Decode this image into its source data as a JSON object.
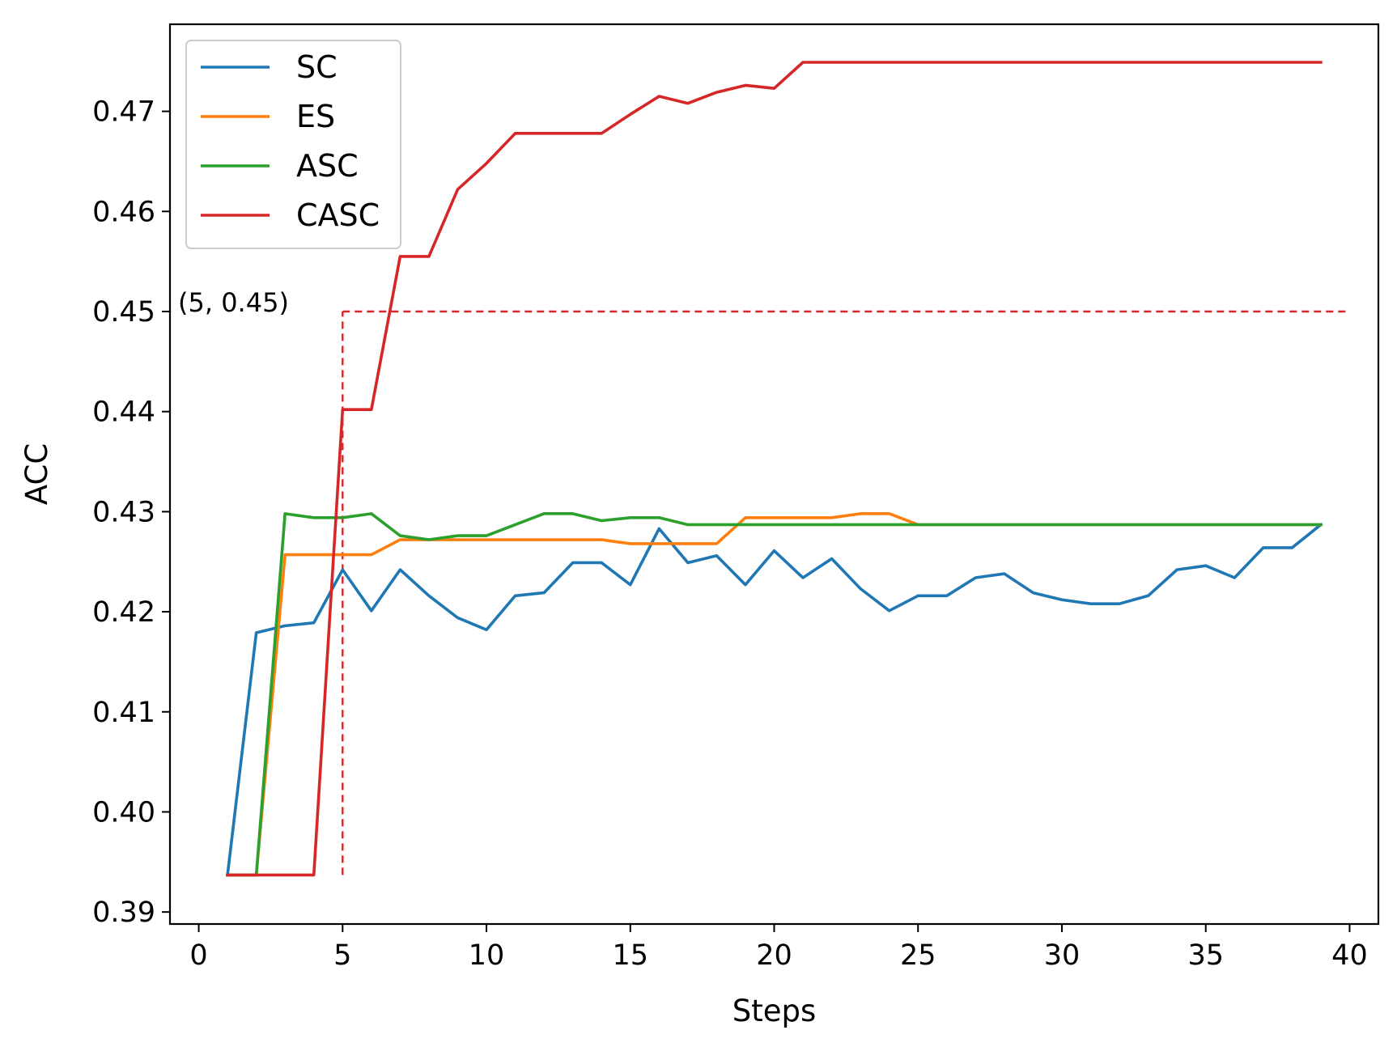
{
  "chart_data": {
    "type": "line",
    "title": "",
    "xlabel": "Steps",
    "ylabel": "ACC",
    "xlim": [
      -1,
      41
    ],
    "ylim": [
      0.3888,
      0.4787
    ],
    "xticks": [
      0,
      5,
      10,
      15,
      20,
      25,
      30,
      35,
      40
    ],
    "yticks": [
      0.39,
      0.4,
      0.41,
      0.42,
      0.43,
      0.44,
      0.45,
      0.46,
      0.47
    ],
    "xtick_labels": [
      "0",
      "5",
      "10",
      "15",
      "20",
      "25",
      "30",
      "35",
      "40"
    ],
    "ytick_labels": [
      "0.39",
      "0.40",
      "0.41",
      "0.42",
      "0.43",
      "0.44",
      "0.45",
      "0.46",
      "0.47"
    ],
    "grid": false,
    "legend_position": "top-left",
    "x": [
      1,
      2,
      3,
      4,
      5,
      6,
      7,
      8,
      9,
      10,
      11,
      12,
      13,
      14,
      15,
      16,
      17,
      18,
      19,
      20,
      21,
      22,
      23,
      24,
      25,
      26,
      27,
      28,
      29,
      30,
      31,
      32,
      33,
      34,
      35,
      36,
      37,
      38,
      39
    ],
    "series": [
      {
        "name": "SC",
        "color": "#1f77b4",
        "values": [
          0.3937,
          0.4179,
          0.4186,
          0.4189,
          0.4242,
          0.4201,
          0.4242,
          0.4216,
          0.4194,
          0.4182,
          0.4216,
          0.4219,
          0.4249,
          0.4249,
          0.4227,
          0.4283,
          0.4249,
          0.4256,
          0.4227,
          0.4261,
          0.4234,
          0.4253,
          0.4223,
          0.4201,
          0.4216,
          0.4216,
          0.4234,
          0.4238,
          0.4219,
          0.4212,
          0.4208,
          0.4208,
          0.4216,
          0.4242,
          0.4246,
          0.4234,
          0.4264,
          0.4264,
          0.4287
        ]
      },
      {
        "name": "ES",
        "color": "#ff7f0e",
        "values": [
          0.3937,
          0.3937,
          0.4257,
          0.4257,
          0.4257,
          0.4257,
          0.4272,
          0.4272,
          0.4272,
          0.4272,
          0.4272,
          0.4272,
          0.4272,
          0.4272,
          0.4268,
          0.4268,
          0.4268,
          0.4268,
          0.4294,
          0.4294,
          0.4294,
          0.4294,
          0.4298,
          0.4298,
          0.4287,
          0.4287,
          0.4287,
          0.4287,
          0.4287,
          0.4287,
          0.4287,
          0.4287,
          0.4287,
          0.4287,
          0.4287,
          0.4287,
          0.4287,
          0.4287,
          0.4287
        ]
      },
      {
        "name": "ASC",
        "color": "#2ca02c",
        "values": [
          0.3937,
          0.3937,
          0.4298,
          0.4294,
          0.4294,
          0.4298,
          0.4276,
          0.4272,
          0.4276,
          0.4276,
          0.4287,
          0.4298,
          0.4298,
          0.4291,
          0.4294,
          0.4294,
          0.4287,
          0.4287,
          0.4287,
          0.4287,
          0.4287,
          0.4287,
          0.4287,
          0.4287,
          0.4287,
          0.4287,
          0.4287,
          0.4287,
          0.4287,
          0.4287,
          0.4287,
          0.4287,
          0.4287,
          0.4287,
          0.4287,
          0.4287,
          0.4287,
          0.4287,
          0.4287
        ]
      },
      {
        "name": "CASC",
        "color": "#d62728",
        "values": [
          0.3937,
          0.3937,
          0.3937,
          0.3937,
          0.4402,
          0.4402,
          0.4555,
          0.4555,
          0.4622,
          0.4648,
          0.4678,
          0.4678,
          0.4678,
          0.4678,
          0.4697,
          0.4715,
          0.4708,
          0.4719,
          0.4726,
          0.4723,
          0.4749,
          0.4749,
          0.4749,
          0.4749,
          0.4749,
          0.4749,
          0.4749,
          0.4749,
          0.4749,
          0.4749,
          0.4749,
          0.4749,
          0.4749,
          0.4749,
          0.4749,
          0.4749,
          0.4749,
          0.4749,
          0.4749
        ]
      }
    ],
    "reference_line": {
      "color": "#d62728",
      "style": "dashed",
      "vertical": {
        "x": 5,
        "y_from": 0.3937,
        "y_to": 0.45
      },
      "horizontal": {
        "y": 0.45,
        "x_from": 5,
        "x_to": 40
      }
    },
    "annotations": [
      {
        "text": "(5, 0.45)",
        "x": 5,
        "y": 0.45
      }
    ]
  }
}
